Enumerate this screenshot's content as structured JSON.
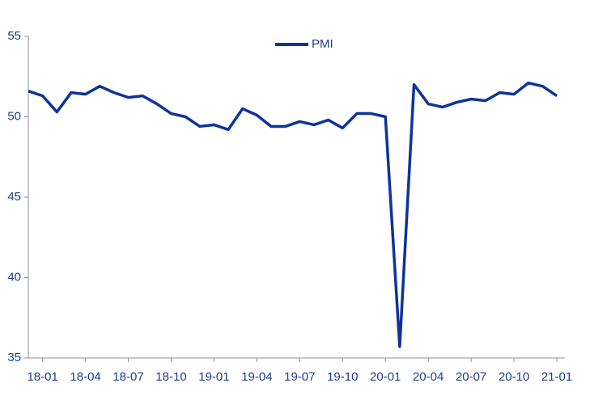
{
  "chart_data": {
    "type": "line",
    "categories": [
      null,
      "18-01",
      null,
      null,
      "18-04",
      null,
      null,
      "18-07",
      null,
      null,
      "18-10",
      null,
      null,
      "19-01",
      null,
      null,
      "19-04",
      null,
      null,
      "19-07",
      null,
      null,
      "19-10",
      null,
      null,
      "20-01",
      null,
      null,
      "20-04",
      null,
      null,
      "20-07",
      null,
      null,
      "20-10",
      null,
      null,
      "21-01"
    ],
    "series": [
      {
        "name": "PMI",
        "color": "#0f3399",
        "values": [
          51.6,
          51.3,
          50.3,
          51.5,
          51.4,
          51.9,
          51.5,
          51.2,
          51.3,
          50.8,
          50.2,
          50.0,
          49.4,
          49.5,
          49.2,
          50.5,
          50.1,
          49.4,
          49.4,
          49.7,
          49.5,
          49.8,
          49.3,
          50.2,
          50.2,
          50.0,
          35.7,
          52.0,
          50.8,
          50.6,
          50.9,
          51.1,
          51.0,
          51.5,
          51.4,
          52.1,
          51.9,
          51.3
        ]
      }
    ],
    "ylim": [
      35,
      55
    ],
    "yticks": [
      35,
      40,
      45,
      50,
      55
    ],
    "grid": false,
    "legend": "top"
  }
}
